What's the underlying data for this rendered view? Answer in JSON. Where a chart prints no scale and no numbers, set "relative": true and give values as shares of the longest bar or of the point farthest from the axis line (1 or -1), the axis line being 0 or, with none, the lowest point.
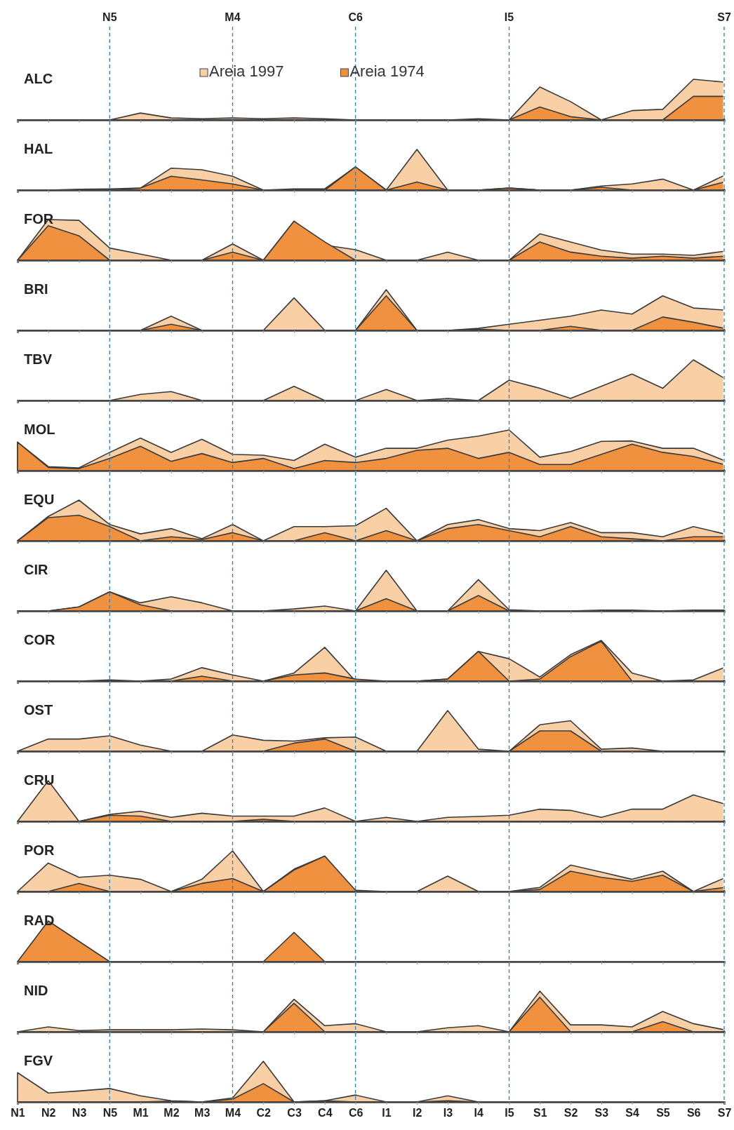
{
  "chart_data": [
    {
      "type": "area",
      "title": "ALC",
      "relative": true,
      "tick_labels": false,
      "legend": "top",
      "categories": [
        "N1",
        "N2",
        "N3",
        "N5",
        "M1",
        "M2",
        "M3",
        "M4",
        "C2",
        "C3",
        "C4",
        "C6",
        "I1",
        "I2",
        "I3",
        "I4",
        "I5",
        "S1",
        "S2",
        "S3",
        "S4",
        "S5",
        "S6",
        "S7"
      ],
      "series": [
        {
          "name": "Areia 1997",
          "color": "#f9cfa6",
          "values": [
            0,
            0,
            0,
            0,
            0.17,
            0.05,
            0.03,
            0.05,
            0.03,
            0.05,
            0.03,
            0,
            0,
            0,
            0,
            0.03,
            0,
            0.81,
            0.45,
            0,
            0.23,
            0.26,
            1,
            0.93
          ]
        },
        {
          "name": "Areia 1974",
          "color": "#f0913f",
          "values": [
            0,
            0,
            0,
            0,
            0,
            0,
            0,
            0,
            0,
            0,
            0,
            0,
            0,
            0,
            0,
            0,
            0,
            0.32,
            0.08,
            0,
            0,
            0,
            0.58,
            0.58
          ]
        }
      ],
      "ref_lines": [
        {
          "axis": "x",
          "value": "N5"
        },
        {
          "axis": "x",
          "value": "M4"
        },
        {
          "axis": "x",
          "value": "C6"
        },
        {
          "axis": "x",
          "value": "I5"
        },
        {
          "axis": "x",
          "value": "S7"
        }
      ],
      "annotations": [
        "N5",
        "M4",
        "C6",
        "I5",
        "S7"
      ]
    },
    {
      "type": "area",
      "title": "HAL",
      "relative": true,
      "tick_labels": false,
      "categories": [
        "N1",
        "N2",
        "N3",
        "N5",
        "M1",
        "M2",
        "M3",
        "M4",
        "C2",
        "C3",
        "C4",
        "C6",
        "I1",
        "I2",
        "I3",
        "I4",
        "I5",
        "S1",
        "S2",
        "S3",
        "S4",
        "S5",
        "S6",
        "S7"
      ],
      "series": [
        {
          "color": "#f9cfa6",
          "values": [
            0,
            0,
            0.02,
            0.03,
            0.05,
            0.54,
            0.5,
            0.34,
            0,
            0.03,
            0.03,
            0.57,
            0,
            1,
            0,
            0,
            0.05,
            0,
            0,
            0.1,
            0.15,
            0.27,
            0,
            0.36
          ]
        },
        {
          "color": "#f0913f",
          "values": [
            0,
            0,
            0,
            0,
            0.05,
            0.34,
            0.25,
            0.15,
            0,
            0,
            0,
            0.57,
            0,
            0.2,
            0,
            0,
            0.05,
            0,
            0,
            0.07,
            0,
            0,
            0,
            0.2
          ]
        }
      ],
      "ref_lines": [
        {
          "axis": "x",
          "value": "N5"
        },
        {
          "axis": "x",
          "value": "M4"
        },
        {
          "axis": "x",
          "value": "C6"
        },
        {
          "axis": "x",
          "value": "I5"
        },
        {
          "axis": "x",
          "value": "S7"
        }
      ]
    },
    {
      "type": "area",
      "title": "FOR",
      "relative": true,
      "tick_labels": false,
      "categories": [
        "N1",
        "N2",
        "N3",
        "N5",
        "M1",
        "M2",
        "M3",
        "M4",
        "C2",
        "C3",
        "C4",
        "C6",
        "I1",
        "I2",
        "I3",
        "I4",
        "I5",
        "S1",
        "S2",
        "S3",
        "S4",
        "S5",
        "S6",
        "S7"
      ],
      "series": [
        {
          "color": "#f9cfa6",
          "values": [
            0,
            1,
            0.98,
            0.3,
            0.15,
            0,
            0,
            0.4,
            0,
            0.96,
            0.37,
            0.26,
            0,
            0,
            0.2,
            0,
            0,
            0.65,
            0.45,
            0.25,
            0.15,
            0.15,
            0.12,
            0.22
          ]
        },
        {
          "color": "#f0913f",
          "values": [
            0,
            0.85,
            0.6,
            0,
            0,
            0,
            0,
            0.2,
            0,
            0.96,
            0.45,
            0,
            0,
            0,
            0,
            0,
            0,
            0.45,
            0.2,
            0.1,
            0.05,
            0.1,
            0.05,
            0.1
          ]
        }
      ],
      "ref_lines": [
        {
          "axis": "x",
          "value": "N5"
        },
        {
          "axis": "x",
          "value": "M4"
        },
        {
          "axis": "x",
          "value": "C6"
        },
        {
          "axis": "x",
          "value": "I5"
        },
        {
          "axis": "x",
          "value": "S7"
        }
      ]
    },
    {
      "type": "area",
      "title": "BRI",
      "relative": true,
      "tick_labels": false,
      "categories": [
        "N1",
        "N2",
        "N3",
        "N5",
        "M1",
        "M2",
        "M3",
        "M4",
        "C2",
        "C3",
        "C4",
        "C6",
        "I1",
        "I2",
        "I3",
        "I4",
        "I5",
        "S1",
        "S2",
        "S3",
        "S4",
        "S5",
        "S6",
        "S7"
      ],
      "series": [
        {
          "color": "#f9cfa6",
          "values": [
            0,
            0,
            0,
            0,
            0,
            0.35,
            0,
            0,
            0,
            0.8,
            0,
            0,
            1,
            0,
            0,
            0.05,
            0.15,
            0.25,
            0.35,
            0.5,
            0.4,
            0.85,
            0.55,
            0.5
          ]
        },
        {
          "color": "#f0913f",
          "values": [
            0,
            0,
            0,
            0,
            0,
            0.15,
            0,
            0,
            0,
            0,
            0,
            0,
            0.85,
            0,
            0,
            0.03,
            0,
            0,
            0.1,
            0,
            0,
            0.33,
            0.2,
            0.05
          ]
        }
      ],
      "ref_lines": [
        {
          "axis": "x",
          "value": "N5"
        },
        {
          "axis": "x",
          "value": "M4"
        },
        {
          "axis": "x",
          "value": "C6"
        },
        {
          "axis": "x",
          "value": "I5"
        },
        {
          "axis": "x",
          "value": "S7"
        }
      ]
    },
    {
      "type": "area",
      "title": "TBV",
      "relative": true,
      "tick_labels": false,
      "categories": [
        "N1",
        "N2",
        "N3",
        "N5",
        "M1",
        "M2",
        "M3",
        "M4",
        "C2",
        "C3",
        "C4",
        "C6",
        "I1",
        "I2",
        "I3",
        "I4",
        "I5",
        "S1",
        "S2",
        "S3",
        "S4",
        "S5",
        "S6",
        "S7"
      ],
      "series": [
        {
          "color": "#f9cfa6",
          "values": [
            0,
            0,
            0,
            0,
            0.15,
            0.22,
            0,
            0,
            0,
            0.35,
            0,
            0,
            0.27,
            0,
            0.05,
            0,
            0.5,
            0.3,
            0.05,
            0.35,
            0.65,
            0.3,
            1,
            0.55
          ]
        }
      ],
      "ref_lines": [
        {
          "axis": "x",
          "value": "N5"
        },
        {
          "axis": "x",
          "value": "M4"
        },
        {
          "axis": "x",
          "value": "C6"
        },
        {
          "axis": "x",
          "value": "I5"
        },
        {
          "axis": "x",
          "value": "S7"
        }
      ]
    },
    {
      "type": "area",
      "title": "MOL",
      "relative": true,
      "tick_labels": false,
      "categories": [
        "N1",
        "N2",
        "N3",
        "N5",
        "M1",
        "M2",
        "M3",
        "M4",
        "C2",
        "C3",
        "C4",
        "C6",
        "I1",
        "I2",
        "I3",
        "I4",
        "I5",
        "S1",
        "S2",
        "S3",
        "S4",
        "S5",
        "S6",
        "S7"
      ],
      "series": [
        {
          "color": "#f9cfa6",
          "values": [
            0.7,
            0.1,
            0.07,
            0.45,
            0.8,
            0.45,
            0.77,
            0.4,
            0.38,
            0.25,
            0.65,
            0.33,
            0.55,
            0.55,
            0.75,
            0.85,
            1,
            0.33,
            0.47,
            0.72,
            0.73,
            0.55,
            0.55,
            0.25
          ]
        },
        {
          "color": "#f0913f",
          "values": [
            0.7,
            0.08,
            0.05,
            0.3,
            0.6,
            0.23,
            0.42,
            0.2,
            0.3,
            0.05,
            0.25,
            0.2,
            0.3,
            0.5,
            0.55,
            0.3,
            0.45,
            0.15,
            0.15,
            0.4,
            0.65,
            0.45,
            0.35,
            0.15
          ]
        }
      ],
      "ref_lines": [
        {
          "axis": "x",
          "value": "N5"
        },
        {
          "axis": "x",
          "value": "M4"
        },
        {
          "axis": "x",
          "value": "C6"
        },
        {
          "axis": "x",
          "value": "I5"
        },
        {
          "axis": "x",
          "value": "S7"
        }
      ]
    },
    {
      "type": "area",
      "title": "EQU",
      "relative": true,
      "tick_labels": false,
      "categories": [
        "N1",
        "N2",
        "N3",
        "N5",
        "M1",
        "M2",
        "M3",
        "M4",
        "C2",
        "C3",
        "C4",
        "C6",
        "I1",
        "I2",
        "I3",
        "I4",
        "I5",
        "S1",
        "S2",
        "S3",
        "S4",
        "S5",
        "S6",
        "S7"
      ],
      "series": [
        {
          "color": "#f9cfa6",
          "values": [
            0,
            0.6,
            1,
            0.4,
            0.17,
            0.3,
            0.05,
            0.4,
            0,
            0.35,
            0.35,
            0.37,
            0.8,
            0,
            0.4,
            0.52,
            0.3,
            0.25,
            0.45,
            0.2,
            0.2,
            0.1,
            0.35,
            0.17
          ]
        },
        {
          "color": "#f0913f",
          "values": [
            0,
            0.57,
            0.63,
            0.35,
            0,
            0.1,
            0.03,
            0.2,
            0,
            0,
            0.2,
            0,
            0.25,
            0,
            0.3,
            0.4,
            0.25,
            0.1,
            0.35,
            0.1,
            0.05,
            0,
            0.1,
            0.1
          ]
        }
      ],
      "ref_lines": [
        {
          "axis": "x",
          "value": "N5"
        },
        {
          "axis": "x",
          "value": "M4"
        },
        {
          "axis": "x",
          "value": "C6"
        },
        {
          "axis": "x",
          "value": "I5"
        },
        {
          "axis": "x",
          "value": "S7"
        }
      ]
    },
    {
      "type": "area",
      "title": "CIR",
      "relative": true,
      "tick_labels": false,
      "categories": [
        "N1",
        "N2",
        "N3",
        "N5",
        "M1",
        "M2",
        "M3",
        "M4",
        "C2",
        "C3",
        "C4",
        "C6",
        "I1",
        "I2",
        "I3",
        "I4",
        "I5",
        "S1",
        "S2",
        "S3",
        "S4",
        "S5",
        "S6",
        "S7"
      ],
      "series": [
        {
          "color": "#f9cfa6",
          "values": [
            0,
            0,
            0.1,
            0.47,
            0.2,
            0.35,
            0.2,
            0,
            0,
            0.05,
            0.12,
            0,
            1,
            0,
            0,
            0.77,
            0.03,
            0,
            0,
            0.02,
            0.02,
            0,
            0.02,
            0.02
          ]
        },
        {
          "color": "#f0913f",
          "values": [
            0,
            0,
            0.1,
            0.47,
            0.15,
            0,
            0,
            0,
            0,
            0,
            0,
            0,
            0.3,
            0,
            0,
            0.38,
            0,
            0,
            0,
            0,
            0,
            0,
            0,
            0
          ]
        }
      ],
      "ref_lines": [
        {
          "axis": "x",
          "value": "N5"
        },
        {
          "axis": "x",
          "value": "M4"
        },
        {
          "axis": "x",
          "value": "C6"
        },
        {
          "axis": "x",
          "value": "I5"
        },
        {
          "axis": "x",
          "value": "S7"
        }
      ]
    },
    {
      "type": "area",
      "title": "COR",
      "relative": true,
      "tick_labels": false,
      "categories": [
        "N1",
        "N2",
        "N3",
        "N5",
        "M1",
        "M2",
        "M3",
        "M4",
        "C2",
        "C3",
        "C4",
        "C6",
        "I1",
        "I2",
        "I3",
        "I4",
        "I5",
        "S1",
        "S2",
        "S3",
        "S4",
        "S5",
        "S6",
        "S7"
      ],
      "series": [
        {
          "color": "#f9cfa6",
          "values": [
            0,
            0,
            0,
            0.03,
            0,
            0.05,
            0.33,
            0.15,
            0,
            0.2,
            0.83,
            0,
            0,
            0,
            0.05,
            0.73,
            0.55,
            0.1,
            0.65,
            1,
            0.2,
            0,
            0.03,
            0.33
          ]
        },
        {
          "color": "#f0913f",
          "values": [
            0,
            0,
            0,
            0,
            0,
            0,
            0.12,
            0,
            0,
            0.15,
            0.2,
            0.05,
            0,
            0,
            0.05,
            0.73,
            0,
            0.05,
            0.6,
            0.98,
            0,
            0,
            0,
            0
          ]
        }
      ],
      "ref_lines": [
        {
          "axis": "x",
          "value": "N5"
        },
        {
          "axis": "x",
          "value": "M4"
        },
        {
          "axis": "x",
          "value": "C6"
        },
        {
          "axis": "x",
          "value": "I5"
        },
        {
          "axis": "x",
          "value": "S7"
        }
      ]
    },
    {
      "type": "area",
      "title": "OST",
      "relative": true,
      "tick_labels": false,
      "categories": [
        "N1",
        "N2",
        "N3",
        "N5",
        "M1",
        "M2",
        "M3",
        "M4",
        "C2",
        "C3",
        "C4",
        "C6",
        "I1",
        "I2",
        "I3",
        "I4",
        "I5",
        "S1",
        "S2",
        "S3",
        "S4",
        "S5",
        "S6",
        "S7"
      ],
      "series": [
        {
          "color": "#f9cfa6",
          "values": [
            0,
            0.3,
            0.3,
            0.38,
            0.15,
            0,
            0,
            0.4,
            0.27,
            0.25,
            0.33,
            0.35,
            0,
            0,
            1,
            0.05,
            0,
            0.65,
            0.75,
            0.05,
            0.08,
            0,
            0,
            0
          ]
        },
        {
          "color": "#f0913f",
          "values": [
            0,
            0,
            0,
            0,
            0,
            0,
            0,
            0,
            0,
            0.2,
            0.3,
            0,
            0,
            0,
            0,
            0,
            0,
            0.5,
            0.5,
            0,
            0,
            0,
            0,
            0
          ]
        }
      ],
      "ref_lines": [
        {
          "axis": "x",
          "value": "N5"
        },
        {
          "axis": "x",
          "value": "M4"
        },
        {
          "axis": "x",
          "value": "C6"
        },
        {
          "axis": "x",
          "value": "I5"
        },
        {
          "axis": "x",
          "value": "S7"
        }
      ]
    },
    {
      "type": "area",
      "title": "CRU",
      "relative": true,
      "tick_labels": false,
      "categories": [
        "N1",
        "N2",
        "N3",
        "N5",
        "M1",
        "M2",
        "M3",
        "M4",
        "C2",
        "C3",
        "C4",
        "C6",
        "I1",
        "I2",
        "I3",
        "I4",
        "I5",
        "S1",
        "S2",
        "S3",
        "S4",
        "S5",
        "S6",
        "S7"
      ],
      "series": [
        {
          "color": "#f9cfa6",
          "values": [
            0,
            1,
            0,
            0.17,
            0.25,
            0.1,
            0.2,
            0.13,
            0.13,
            0.13,
            0.33,
            0,
            0.1,
            0,
            0.1,
            0.12,
            0.15,
            0.3,
            0.27,
            0.1,
            0.3,
            0.3,
            0.65,
            0.43
          ]
        },
        {
          "color": "#f0913f",
          "values": [
            0,
            0,
            0,
            0.15,
            0.13,
            0,
            0,
            0,
            0.05,
            0,
            0,
            0,
            0,
            0,
            0,
            0,
            0,
            0,
            0,
            0,
            0,
            0,
            0,
            0
          ]
        }
      ],
      "ref_lines": [
        {
          "axis": "x",
          "value": "N5"
        },
        {
          "axis": "x",
          "value": "M4"
        },
        {
          "axis": "x",
          "value": "C6"
        },
        {
          "axis": "x",
          "value": "I5"
        },
        {
          "axis": "x",
          "value": "S7"
        }
      ]
    },
    {
      "type": "area",
      "title": "POR",
      "relative": true,
      "tick_labels": false,
      "categories": [
        "N1",
        "N2",
        "N3",
        "N5",
        "M1",
        "M2",
        "M3",
        "M4",
        "C2",
        "C3",
        "C4",
        "C6",
        "I1",
        "I2",
        "I3",
        "I4",
        "I5",
        "S1",
        "S2",
        "S3",
        "S4",
        "S5",
        "S6",
        "S7"
      ],
      "series": [
        {
          "color": "#f9cfa6",
          "values": [
            0,
            0.7,
            0.35,
            0.4,
            0.3,
            0,
            0.3,
            1,
            0,
            0.55,
            0.87,
            0,
            0,
            0,
            0.38,
            0,
            0,
            0.1,
            0.65,
            0.48,
            0.3,
            0.5,
            0,
            0.33
          ]
        },
        {
          "color": "#f0913f",
          "values": [
            0,
            0,
            0.2,
            0,
            0,
            0,
            0.2,
            0.32,
            0,
            0.53,
            0.87,
            0.03,
            0,
            0,
            0,
            0,
            0,
            0.05,
            0.5,
            0.35,
            0.25,
            0.4,
            0,
            0.1
          ]
        }
      ],
      "ref_lines": [
        {
          "axis": "x",
          "value": "N5"
        },
        {
          "axis": "x",
          "value": "M4"
        },
        {
          "axis": "x",
          "value": "C6"
        },
        {
          "axis": "x",
          "value": "I5"
        },
        {
          "axis": "x",
          "value": "S7"
        }
      ]
    },
    {
      "type": "area",
      "title": "RAD",
      "relative": true,
      "tick_labels": false,
      "categories": [
        "N1",
        "N2",
        "N3",
        "N5",
        "M1",
        "M2",
        "M3",
        "M4",
        "C2",
        "C3",
        "C4",
        "C6",
        "I1",
        "I2",
        "I3",
        "I4",
        "I5",
        "S1",
        "S2",
        "S3",
        "S4",
        "S5",
        "S6",
        "S7"
      ],
      "series": [
        {
          "color": "#f0913f",
          "values": [
            0,
            1,
            0.5,
            0,
            0,
            0,
            0,
            0,
            0,
            0.72,
            0,
            0,
            0,
            0,
            0,
            0,
            0,
            0,
            0,
            0,
            0,
            0,
            0,
            0
          ]
        }
      ],
      "ref_lines": [
        {
          "axis": "x",
          "value": "N5"
        },
        {
          "axis": "x",
          "value": "M4"
        },
        {
          "axis": "x",
          "value": "C6"
        },
        {
          "axis": "x",
          "value": "I5"
        },
        {
          "axis": "x",
          "value": "S7"
        }
      ]
    },
    {
      "type": "area",
      "title": "NID",
      "relative": true,
      "tick_labels": false,
      "categories": [
        "N1",
        "N2",
        "N3",
        "N5",
        "M1",
        "M2",
        "M3",
        "M4",
        "C2",
        "C3",
        "C4",
        "C6",
        "I1",
        "I2",
        "I3",
        "I4",
        "I5",
        "S1",
        "S2",
        "S3",
        "S4",
        "S5",
        "S6",
        "S7"
      ],
      "series": [
        {
          "color": "#f9cfa6",
          "values": [
            0,
            0.12,
            0.03,
            0.05,
            0.05,
            0.05,
            0.07,
            0.05,
            0,
            0.8,
            0.15,
            0.2,
            0,
            0,
            0.1,
            0.15,
            0,
            1,
            0.17,
            0.17,
            0.12,
            0.5,
            0.2,
            0.05
          ]
        },
        {
          "color": "#f0913f",
          "values": [
            0,
            0,
            0,
            0,
            0,
            0,
            0,
            0,
            0,
            0.7,
            0,
            0,
            0,
            0,
            0,
            0,
            0,
            0.85,
            0,
            0,
            0,
            0.25,
            0,
            0
          ]
        }
      ],
      "ref_lines": [
        {
          "axis": "x",
          "value": "N5"
        },
        {
          "axis": "x",
          "value": "M4"
        },
        {
          "axis": "x",
          "value": "C6"
        },
        {
          "axis": "x",
          "value": "I5"
        },
        {
          "axis": "x",
          "value": "S7"
        }
      ]
    },
    {
      "type": "area",
      "title": "FGV",
      "relative": true,
      "tick_labels": "x",
      "categories": [
        "N1",
        "N2",
        "N3",
        "N5",
        "M1",
        "M2",
        "M3",
        "M4",
        "C2",
        "C3",
        "C4",
        "C6",
        "I1",
        "I2",
        "I3",
        "I4",
        "I5",
        "S1",
        "S2",
        "S3",
        "S4",
        "S5",
        "S6",
        "S7"
      ],
      "series": [
        {
          "color": "#f9cfa6",
          "values": [
            0.72,
            0.22,
            0.27,
            0.33,
            0.15,
            0.03,
            0,
            0.1,
            1,
            0,
            0.03,
            0.17,
            0,
            0,
            0.15,
            0,
            0,
            0,
            0,
            0,
            0,
            0,
            0,
            0
          ]
        },
        {
          "color": "#f0913f",
          "values": [
            0,
            0,
            0,
            0,
            0,
            0.02,
            0,
            0.07,
            0.45,
            0,
            0.03,
            0,
            0,
            0,
            0.03,
            0,
            0,
            0,
            0,
            0,
            0,
            0,
            0,
            0
          ]
        }
      ],
      "ref_lines": [
        {
          "axis": "x",
          "value": "N5"
        },
        {
          "axis": "x",
          "value": "M4"
        },
        {
          "axis": "x",
          "value": "C6"
        },
        {
          "axis": "x",
          "value": "I5"
        },
        {
          "axis": "x",
          "value": "S7"
        }
      ]
    }
  ]
}
